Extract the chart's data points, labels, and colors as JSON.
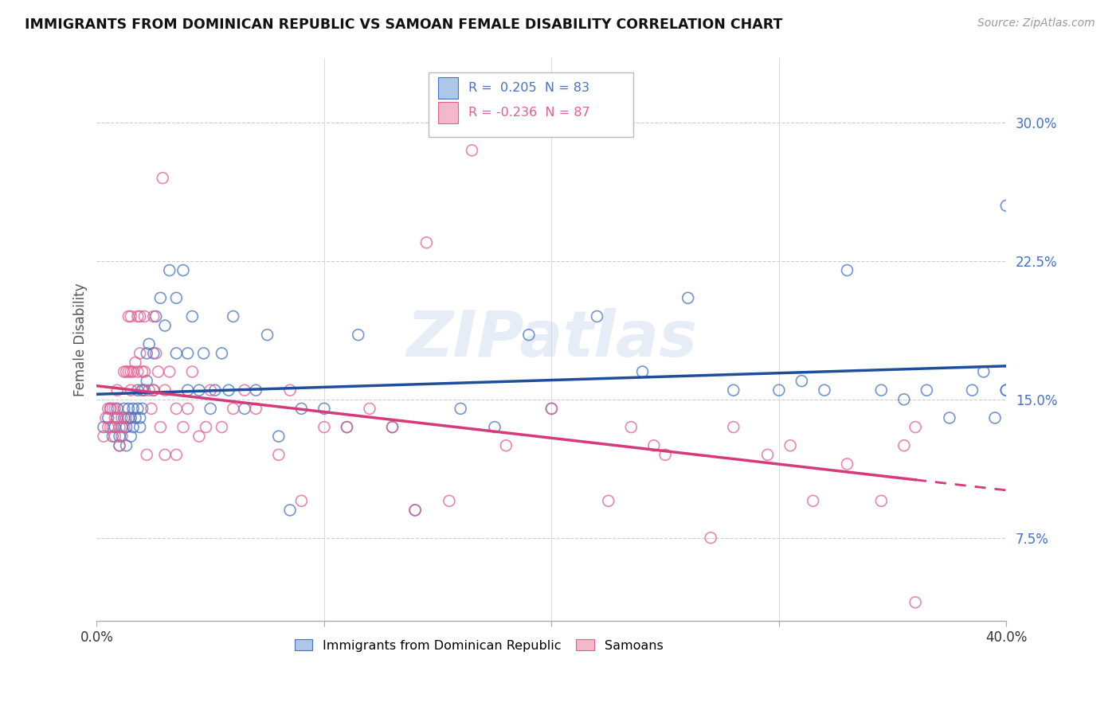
{
  "title": "IMMIGRANTS FROM DOMINICAN REPUBLIC VS SAMOAN FEMALE DISABILITY CORRELATION CHART",
  "source": "Source: ZipAtlas.com",
  "ylabel": "Female Disability",
  "yticks": [
    "7.5%",
    "15.0%",
    "22.5%",
    "30.0%"
  ],
  "ytick_vals": [
    0.075,
    0.15,
    0.225,
    0.3
  ],
  "color_blue": "#aec6e8",
  "color_pink": "#f4b8cb",
  "edge_blue": "#4472c4",
  "edge_pink": "#e06090",
  "line_blue": "#1f4e9c",
  "line_pink": "#d63a7a",
  "xmin": 0.0,
  "xmax": 0.4,
  "ymin": 0.03,
  "ymax": 0.335,
  "watermark": "ZIPatlas",
  "legend_label1": "Immigrants from Dominican Republic",
  "legend_label2": "Samoans",
  "legend_R1": " 0.205",
  "legend_N1": "83",
  "legend_R2": "-0.236",
  "legend_N2": "87",
  "blue_scatter_x": [
    0.003,
    0.005,
    0.006,
    0.007,
    0.008,
    0.009,
    0.009,
    0.01,
    0.01,
    0.011,
    0.012,
    0.012,
    0.013,
    0.013,
    0.014,
    0.014,
    0.015,
    0.015,
    0.016,
    0.016,
    0.017,
    0.018,
    0.018,
    0.019,
    0.019,
    0.02,
    0.02,
    0.021,
    0.022,
    0.022,
    0.023,
    0.025,
    0.025,
    0.026,
    0.028,
    0.03,
    0.032,
    0.035,
    0.035,
    0.038,
    0.04,
    0.04,
    0.042,
    0.045,
    0.047,
    0.05,
    0.052,
    0.055,
    0.058,
    0.06,
    0.065,
    0.07,
    0.075,
    0.08,
    0.085,
    0.09,
    0.1,
    0.11,
    0.115,
    0.13,
    0.14,
    0.16,
    0.175,
    0.19,
    0.2,
    0.22,
    0.24,
    0.26,
    0.28,
    0.3,
    0.31,
    0.32,
    0.33,
    0.345,
    0.355,
    0.365,
    0.375,
    0.385,
    0.39,
    0.395,
    0.4,
    0.4,
    0.4
  ],
  "blue_scatter_y": [
    0.135,
    0.14,
    0.145,
    0.13,
    0.135,
    0.14,
    0.145,
    0.125,
    0.13,
    0.135,
    0.14,
    0.145,
    0.125,
    0.135,
    0.14,
    0.145,
    0.13,
    0.14,
    0.135,
    0.145,
    0.14,
    0.145,
    0.155,
    0.135,
    0.14,
    0.145,
    0.155,
    0.155,
    0.16,
    0.175,
    0.18,
    0.155,
    0.175,
    0.195,
    0.205,
    0.19,
    0.22,
    0.175,
    0.205,
    0.22,
    0.155,
    0.175,
    0.195,
    0.155,
    0.175,
    0.145,
    0.155,
    0.175,
    0.155,
    0.195,
    0.145,
    0.155,
    0.185,
    0.13,
    0.09,
    0.145,
    0.145,
    0.135,
    0.185,
    0.135,
    0.09,
    0.145,
    0.135,
    0.185,
    0.145,
    0.195,
    0.165,
    0.205,
    0.155,
    0.155,
    0.16,
    0.155,
    0.22,
    0.155,
    0.15,
    0.155,
    0.14,
    0.155,
    0.165,
    0.14,
    0.155,
    0.155,
    0.255
  ],
  "pink_scatter_x": [
    0.003,
    0.004,
    0.005,
    0.005,
    0.006,
    0.006,
    0.007,
    0.007,
    0.008,
    0.008,
    0.008,
    0.009,
    0.009,
    0.01,
    0.01,
    0.011,
    0.011,
    0.012,
    0.012,
    0.013,
    0.013,
    0.014,
    0.014,
    0.015,
    0.015,
    0.015,
    0.016,
    0.017,
    0.018,
    0.018,
    0.019,
    0.019,
    0.02,
    0.02,
    0.021,
    0.021,
    0.022,
    0.023,
    0.024,
    0.025,
    0.025,
    0.026,
    0.027,
    0.028,
    0.029,
    0.03,
    0.03,
    0.032,
    0.035,
    0.035,
    0.038,
    0.04,
    0.042,
    0.045,
    0.048,
    0.05,
    0.055,
    0.06,
    0.065,
    0.07,
    0.08,
    0.085,
    0.09,
    0.1,
    0.11,
    0.12,
    0.13,
    0.14,
    0.145,
    0.155,
    0.165,
    0.18,
    0.2,
    0.225,
    0.235,
    0.245,
    0.25,
    0.27,
    0.28,
    0.295,
    0.305,
    0.315,
    0.33,
    0.345,
    0.355,
    0.36,
    0.36
  ],
  "pink_scatter_y": [
    0.13,
    0.14,
    0.135,
    0.145,
    0.135,
    0.145,
    0.135,
    0.145,
    0.13,
    0.14,
    0.145,
    0.14,
    0.155,
    0.125,
    0.135,
    0.13,
    0.14,
    0.135,
    0.165,
    0.14,
    0.165,
    0.165,
    0.195,
    0.155,
    0.165,
    0.195,
    0.165,
    0.17,
    0.165,
    0.195,
    0.175,
    0.195,
    0.155,
    0.165,
    0.165,
    0.195,
    0.12,
    0.155,
    0.145,
    0.155,
    0.195,
    0.175,
    0.165,
    0.135,
    0.27,
    0.12,
    0.155,
    0.165,
    0.12,
    0.145,
    0.135,
    0.145,
    0.165,
    0.13,
    0.135,
    0.155,
    0.135,
    0.145,
    0.155,
    0.145,
    0.12,
    0.155,
    0.095,
    0.135,
    0.135,
    0.145,
    0.135,
    0.09,
    0.235,
    0.095,
    0.285,
    0.125,
    0.145,
    0.095,
    0.135,
    0.125,
    0.12,
    0.075,
    0.135,
    0.12,
    0.125,
    0.095,
    0.115,
    0.095,
    0.125,
    0.04,
    0.135
  ]
}
